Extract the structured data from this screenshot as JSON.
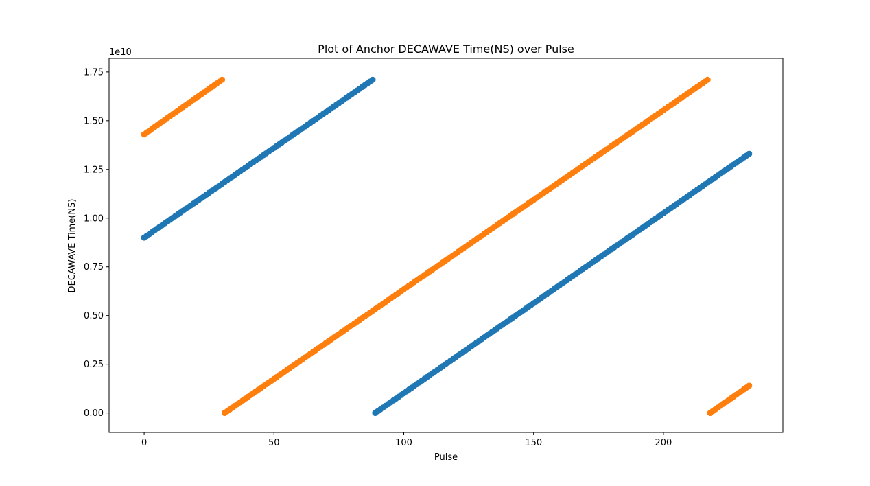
{
  "chart_data": {
    "type": "scatter",
    "title": "Plot of Anchor DECAWAVE Time(NS) over Pulse",
    "xlabel": "Pulse",
    "ylabel": "DECAWAVE Time(NS)",
    "y_offset_label": "1e10",
    "xlim": [
      -13.5,
      246
    ],
    "ylim": [
      -0.1,
      1.82
    ],
    "y_scale_factor": 10000000000,
    "xticks": [
      0,
      50,
      100,
      150,
      200
    ],
    "xtick_labels": [
      "0",
      "50",
      "100",
      "150",
      "200"
    ],
    "yticks": [
      0.0,
      0.25,
      0.5,
      0.75,
      1.0,
      1.25,
      1.5,
      1.75
    ],
    "ytick_labels": [
      "0.00",
      "0.25",
      "0.50",
      "0.75",
      "1.00",
      "1.25",
      "1.50",
      "1.75"
    ],
    "grid": false,
    "legend": "none",
    "series": [
      {
        "color": "#1f77b4",
        "segments": [
          {
            "x_start": 0,
            "x_end": 88,
            "y_start": 0.9,
            "y_end": 1.71
          },
          {
            "x_start": 89,
            "x_end": 233,
            "y_start": 0.0,
            "y_end": 1.33
          }
        ]
      },
      {
        "color": "#ff7f0e",
        "segments": [
          {
            "x_start": 0,
            "x_end": 30,
            "y_start": 1.43,
            "y_end": 1.71
          },
          {
            "x_start": 31,
            "x_end": 217,
            "y_start": 0.0,
            "y_end": 1.71
          },
          {
            "x_start": 218,
            "x_end": 233,
            "y_start": 0.0,
            "y_end": 0.14
          }
        ]
      }
    ]
  }
}
